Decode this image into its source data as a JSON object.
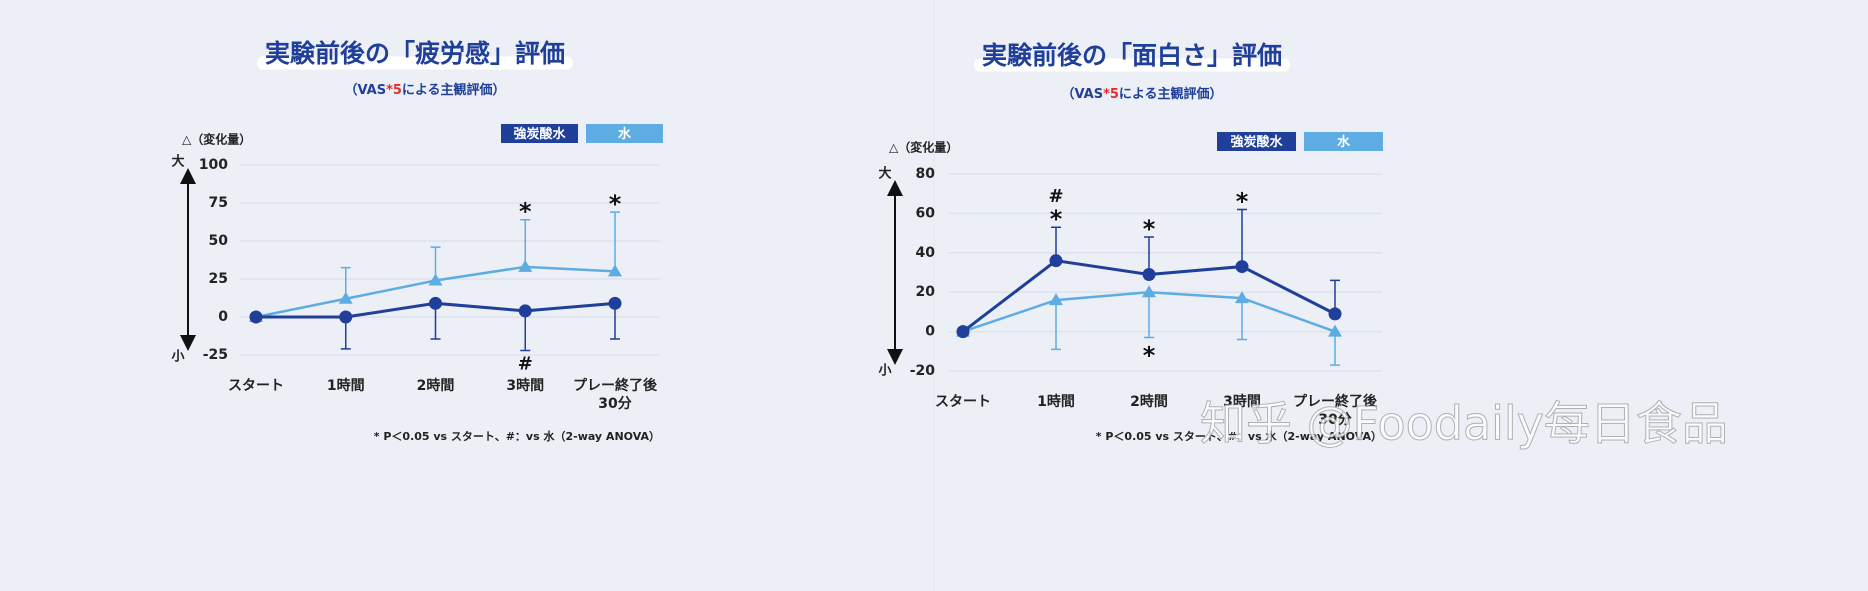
{
  "chart_data": [
    {
      "type": "line",
      "title": "実験前後の「疲労感」評価",
      "subtitle_parts": [
        "（VAS",
        "*5",
        "による主観評価）"
      ],
      "y_label": "△（変化量）",
      "y_high": "大",
      "y_low": "小",
      "categories": [
        "スタート",
        "1時間",
        "2時間",
        "3時間",
        "プレー終了後\n30分"
      ],
      "ylim": [
        -25,
        100
      ],
      "yticks": [
        100,
        75,
        50,
        25,
        0,
        -25
      ],
      "grid": true,
      "legend": "top-right",
      "series": [
        {
          "name": "強炭酸水",
          "color": "#1f3f9a",
          "marker": "circle",
          "error_side": "down",
          "values": [
            0,
            0,
            9,
            4,
            9
          ],
          "errors": [
            0,
            21,
            23.5,
            26,
            23.5
          ]
        },
        {
          "name": "水",
          "color": "#5dade2",
          "marker": "triangle",
          "error_side": "up",
          "values": [
            0,
            12,
            24,
            33,
            30
          ],
          "errors": [
            0,
            20.5,
            22,
            31,
            39
          ]
        }
      ],
      "annotations": [
        {
          "text": "*",
          "x": 3,
          "series": 1,
          "side": "above"
        },
        {
          "text": "*",
          "x": 4,
          "series": 1,
          "side": "above"
        },
        {
          "text": "#",
          "x": 3,
          "series": 0,
          "side": "below"
        }
      ],
      "footnote": "* P＜0.05 vs スタート、#：vs 水（2-way ANOVA）"
    },
    {
      "type": "line",
      "title": "実験前後の「面白さ」評価",
      "subtitle_parts": [
        "（VAS",
        "*5",
        "による主観評価）"
      ],
      "y_label": "△（変化量）",
      "y_high": "大",
      "y_low": "小",
      "categories": [
        "スタート",
        "1時間",
        "2時間",
        "3時間",
        "プレー終了後\n30分"
      ],
      "ylim": [
        -20,
        80
      ],
      "yticks": [
        80,
        60,
        40,
        20,
        0,
        -20
      ],
      "grid": true,
      "legend": "top-right",
      "series": [
        {
          "name": "強炭酸水",
          "color": "#1f3f9a",
          "marker": "circle",
          "error_side": "up",
          "values": [
            0,
            36,
            29,
            33,
            9
          ],
          "errors": [
            0,
            17,
            19,
            29,
            17
          ]
        },
        {
          "name": "水",
          "color": "#5dade2",
          "marker": "triangle",
          "error_side": "down",
          "values": [
            0,
            16,
            20,
            17,
            0
          ],
          "errors": [
            0,
            25,
            23,
            21,
            17
          ]
        }
      ],
      "annotations": [
        {
          "text": "*",
          "x": 1,
          "series": 0,
          "side": "above"
        },
        {
          "text": "#",
          "x": 1,
          "series": 0,
          "side": "above"
        },
        {
          "text": "*",
          "x": 2,
          "series": 0,
          "side": "above"
        },
        {
          "text": "*",
          "x": 3,
          "series": 0,
          "side": "above"
        },
        {
          "text": "*",
          "x": 2,
          "series": 1,
          "side": "below"
        }
      ],
      "footnote": "* P＜0.05 vs スタート、#：vs 水（2-way ANOVA）"
    }
  ],
  "watermark": "知乎 @Foodaily每日食品"
}
